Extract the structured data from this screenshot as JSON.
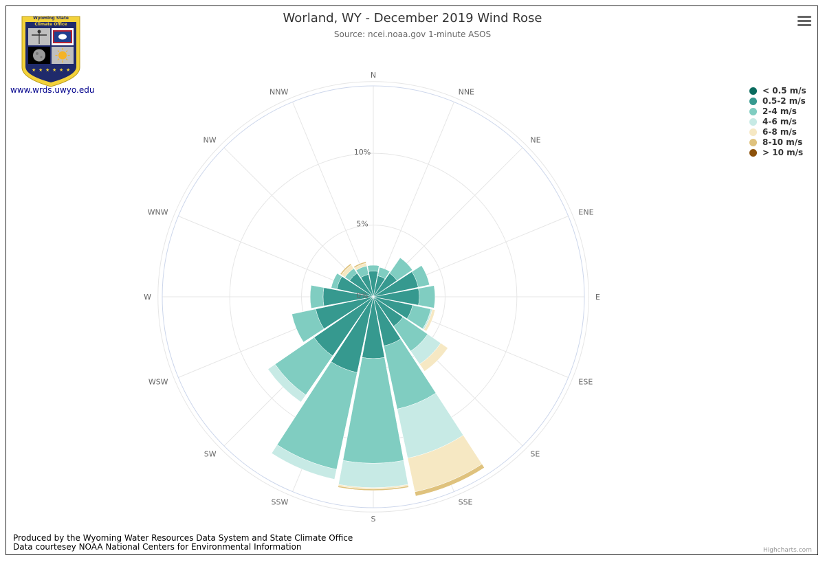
{
  "header": {
    "title": "Worland, WY - December 2019 Wind Rose",
    "subtitle": "Source: ncei.noaa.gov 1-minute ASOS"
  },
  "logo": {
    "line1": "Wyoming State",
    "line2": "Climate Office",
    "link": "www.wrds.uwyo.edu",
    "colors": {
      "navy": "#1f2a6b",
      "gold": "#f3d23a"
    }
  },
  "footer": {
    "line1": "Produced by the Wyoming Water Resources Data System and State Climate Office",
    "line2": "Data courtesey NOAA National Centers for Environmental Information"
  },
  "credits": "Highcharts.com",
  "chart_data": {
    "type": "wind-rose",
    "title": "Worland, WY - December 2019 Wind Rose",
    "subtitle": "Source: ncei.noaa.gov 1-minute ASOS",
    "directions": [
      "N",
      "NNE",
      "NE",
      "ENE",
      "E",
      "ESE",
      "SE",
      "SSE",
      "S",
      "SSW",
      "SW",
      "WSW",
      "W",
      "WNW",
      "NW",
      "NNW"
    ],
    "ytick_labels": [
      "0%",
      "5%",
      "10%"
    ],
    "ytick_values": [
      0,
      5,
      10
    ],
    "grid_rings": [
      5,
      10,
      15
    ],
    "ylim": [
      0,
      14.7
    ],
    "stacking": "normal",
    "legend_placement": "right",
    "series": [
      {
        "name": "< 0.5 m/s",
        "color": "#0a6b5e",
        "values": [
          0,
          0,
          0,
          0,
          0,
          0,
          0,
          0,
          0,
          0,
          0,
          0,
          0,
          0,
          0,
          0
        ]
      },
      {
        "name": "0.5-2 m/s",
        "color": "#36998f",
        "values": [
          1.8,
          1.5,
          2.0,
          3.2,
          3.2,
          2.8,
          2.5,
          3.5,
          4.3,
          5.4,
          5.0,
          4.1,
          3.5,
          2.6,
          2.0,
          1.6
        ]
      },
      {
        "name": "2-4 m/s",
        "color": "#80cdc1",
        "values": [
          0.4,
          0.6,
          1.3,
          0.8,
          1.1,
          1.3,
          2.1,
          4.5,
          7.3,
          6.9,
          3.3,
          1.7,
          0.9,
          0.4,
          0.4,
          0.6
        ]
      },
      {
        "name": "4-6 m/s",
        "color": "#c7eae5",
        "values": [
          0,
          0,
          0,
          0,
          0,
          0.1,
          1.1,
          3.5,
          1.7,
          0.7,
          0.6,
          0,
          0,
          0,
          0,
          0
        ]
      },
      {
        "name": "6-8 m/s",
        "color": "#f6e8c3",
        "values": [
          0,
          0,
          0,
          0,
          0,
          0.2,
          0.6,
          2.4,
          0.1,
          0,
          0,
          0,
          0,
          0,
          0.3,
          0.2
        ]
      },
      {
        "name": "8-10 m/s",
        "color": "#dfc27d",
        "values": [
          0,
          0,
          0,
          0,
          0,
          0,
          0,
          0.3,
          0.1,
          0,
          0,
          0,
          0,
          0,
          0.1,
          0.1
        ]
      },
      {
        "name": "> 10 m/s",
        "color": "#8c510a",
        "values": [
          0,
          0,
          0,
          0,
          0,
          0,
          0,
          0,
          0,
          0,
          0,
          0,
          0,
          0,
          0,
          0
        ]
      }
    ]
  }
}
